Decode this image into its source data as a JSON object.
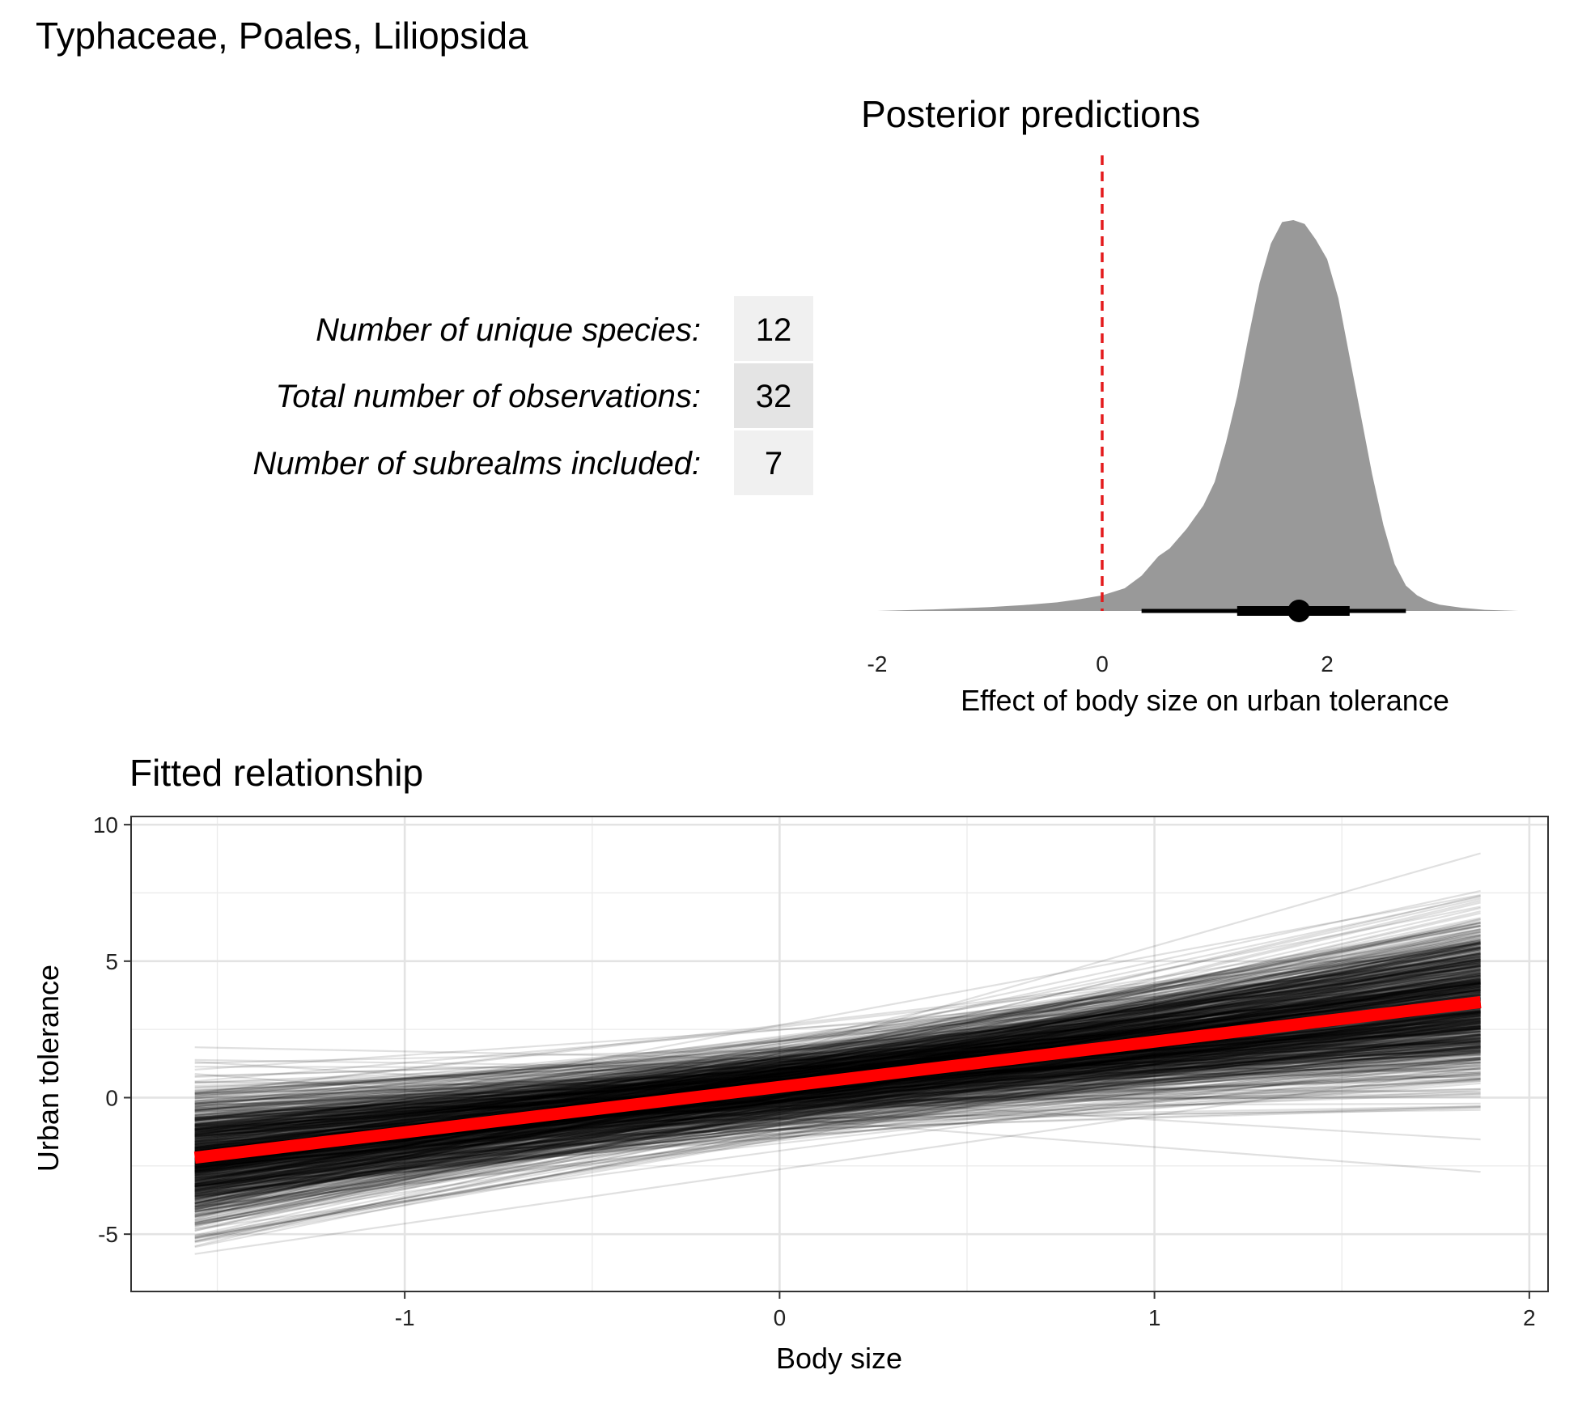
{
  "page_title": "Typhaceae, Poales, Liliopsida",
  "colors": {
    "density_fill": "#999999",
    "zero_line": "#e41a1c",
    "mean_fit": "#ff0000",
    "draws": "#000000",
    "table_cell_light": "#f0f0f0",
    "table_cell_dark": "#e4e4e4"
  },
  "summary_table": {
    "rows": [
      {
        "label": "Number of unique species:",
        "value": "12"
      },
      {
        "label": "Total number of observations:",
        "value": "32"
      },
      {
        "label": "Number of subrealms included:",
        "value": "7"
      }
    ]
  },
  "chart_data": [
    {
      "type": "area",
      "title": "Posterior predictions",
      "xlabel": "Effect of body size on urban tolerance",
      "ylabel": "",
      "xlim": [
        -2,
        3.7
      ],
      "x_ticks": [
        "-2",
        "0",
        "2"
      ],
      "grid": false,
      "reference_line": {
        "x": 0,
        "style": "dashed",
        "color": "red"
      },
      "density": {
        "x": [
          -2.0,
          -1.5,
          -1.0,
          -0.7,
          -0.4,
          -0.2,
          0.0,
          0.2,
          0.35,
          0.5,
          0.6,
          0.75,
          0.9,
          1.0,
          1.1,
          1.2,
          1.3,
          1.4,
          1.5,
          1.6,
          1.7,
          1.8,
          1.9,
          2.0,
          2.1,
          2.2,
          2.3,
          2.4,
          2.5,
          2.6,
          2.7,
          2.8,
          2.9,
          3.0,
          3.2,
          3.4,
          3.7
        ],
        "y": [
          0.0,
          0.004,
          0.01,
          0.015,
          0.022,
          0.03,
          0.04,
          0.058,
          0.09,
          0.14,
          0.16,
          0.21,
          0.27,
          0.33,
          0.43,
          0.55,
          0.7,
          0.84,
          0.94,
          0.995,
          1.0,
          0.99,
          0.95,
          0.9,
          0.8,
          0.65,
          0.5,
          0.35,
          0.22,
          0.12,
          0.065,
          0.04,
          0.025,
          0.016,
          0.008,
          0.003,
          0.0
        ]
      },
      "point_interval": {
        "median": 1.75,
        "inner": [
          1.2,
          2.2
        ],
        "outer": [
          0.35,
          2.7
        ]
      }
    },
    {
      "type": "line",
      "title": "Fitted relationship",
      "xlabel": "Body size",
      "ylabel": "Urban tolerance",
      "xlim": [
        -1.73,
        2.05
      ],
      "ylim": [
        -7.1,
        10.3
      ],
      "x_ticks": [
        "-1",
        "0",
        "1",
        "2"
      ],
      "y_ticks": [
        "-5",
        "0",
        "5",
        "10"
      ],
      "grid": true,
      "x_range": [
        -1.56,
        1.87
      ],
      "mean_line": {
        "x": [
          -1.56,
          1.87
        ],
        "y": [
          -2.2,
          3.5
        ]
      },
      "posterior_draws": {
        "count": 1000,
        "intercept_mean": 0.4,
        "slope_mean": 1.68,
        "intercept_sd": 0.75,
        "slope_sd": 0.65,
        "opacity": 0.12
      }
    }
  ]
}
